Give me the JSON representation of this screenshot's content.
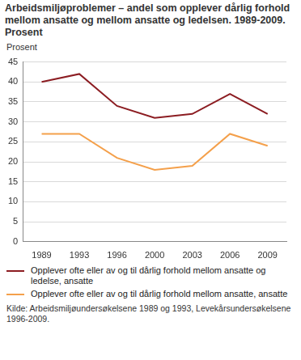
{
  "chart_data": {
    "type": "line",
    "title": "Arbeidsmiljøproblemer – andel som opplever dårlig forhold mellom ansatte og mellom ansatte og ledelsen. 1989-2009. Prosent",
    "ylabel": "Prosent",
    "categories": [
      "1989",
      "1993",
      "1996",
      "2000",
      "2003",
      "2006",
      "2009"
    ],
    "series": [
      {
        "name": "Opplever ofte eller av og til dårlig forhold mellom ansatte og ledelse, ansatte",
        "color": "#8c1d22",
        "values": [
          40,
          42,
          34,
          31,
          32,
          37,
          32
        ]
      },
      {
        "name": "Opplever ofte eller av og til dårlig forhold mellom ansatte, ansatte",
        "color": "#f4a04b",
        "values": [
          27,
          27,
          21,
          18,
          19,
          27,
          24
        ]
      }
    ],
    "ylim": [
      0,
      45
    ],
    "yticks": [
      0,
      5,
      10,
      15,
      20,
      25,
      30,
      35,
      40,
      45
    ],
    "grid": true,
    "legend": "bottom",
    "source": "Kilde: Arbeidsmiljøundersøkelsene 1989 og 1993, Levekårsundersøkelsene 1996-2009."
  }
}
